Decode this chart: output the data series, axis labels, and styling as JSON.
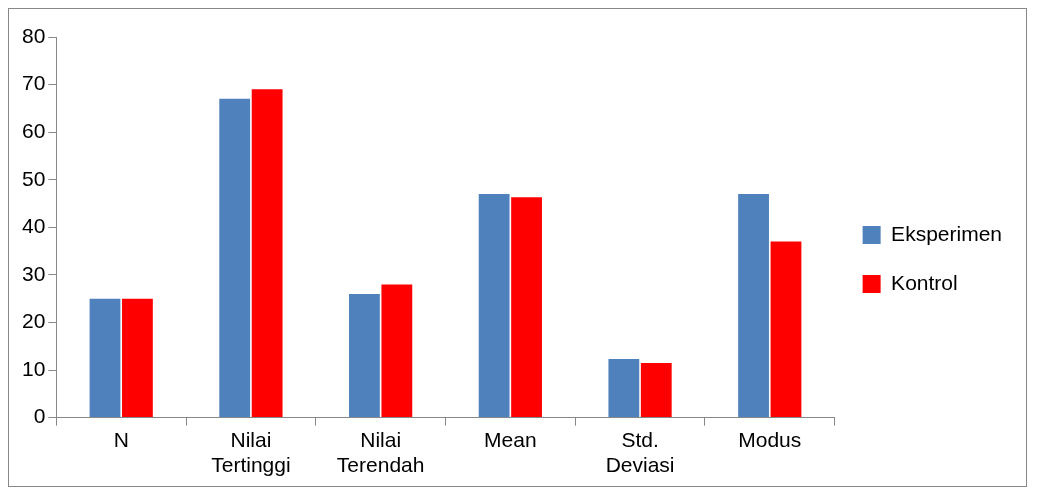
{
  "chart_data": {
    "type": "bar",
    "categories": [
      "N",
      "Nilai Tertinggi",
      "Nilai Terendah",
      "Mean",
      "Std. Deviasi",
      "Modus"
    ],
    "series": [
      {
        "name": "Eksperimen",
        "color": "#4f81bd",
        "values": [
          25,
          67,
          26,
          47,
          12.3,
          47
        ]
      },
      {
        "name": "Kontrol",
        "color": "#ff0000",
        "values": [
          25,
          69,
          28,
          46.3,
          11.5,
          37
        ]
      }
    ],
    "ylim": [
      0,
      80
    ],
    "yticks": [
      0,
      10,
      20,
      30,
      40,
      50,
      60,
      70,
      80
    ],
    "grid": false,
    "legend": "right"
  }
}
